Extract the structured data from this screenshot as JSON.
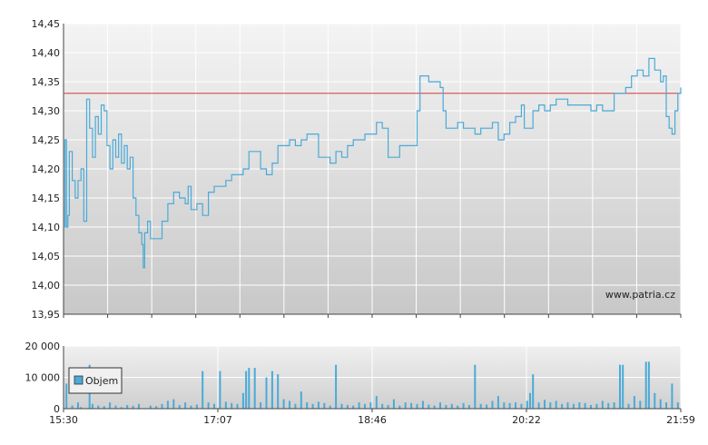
{
  "chart_data": [
    {
      "type": "line",
      "title": "",
      "xlabel": "",
      "ylabel": "",
      "y_ticks": [
        "13,95",
        "14,00",
        "14,05",
        "14,10",
        "14,15",
        "14,20",
        "14,25",
        "14,30",
        "14,35",
        "14,40",
        "14,45"
      ],
      "ylim": [
        13.95,
        14.45
      ],
      "reference_line": {
        "value": 14.33,
        "color": "#d23c3c"
      },
      "watermark": "www.patria.cz",
      "line_color": "#4aaad8",
      "grid": true,
      "series": [
        {
          "values": [
            [
              0,
              14.1
            ],
            [
              0.5,
              14.25
            ],
            [
              1,
              14.1
            ],
            [
              1.5,
              14.12
            ],
            [
              2,
              14.23
            ],
            [
              3,
              14.18
            ],
            [
              4,
              14.15
            ],
            [
              5,
              14.18
            ],
            [
              6,
              14.2
            ],
            [
              7,
              14.11
            ],
            [
              8,
              14.32
            ],
            [
              9,
              14.27
            ],
            [
              10,
              14.22
            ],
            [
              11,
              14.29
            ],
            [
              12,
              14.26
            ],
            [
              13,
              14.31
            ],
            [
              14,
              14.3
            ],
            [
              15,
              14.24
            ],
            [
              16,
              14.2
            ],
            [
              17,
              14.25
            ],
            [
              18,
              14.22
            ],
            [
              19,
              14.26
            ],
            [
              20,
              14.21
            ],
            [
              21,
              14.24
            ],
            [
              22,
              14.2
            ],
            [
              23,
              14.22
            ],
            [
              24,
              14.15
            ],
            [
              25,
              14.12
            ],
            [
              26,
              14.09
            ],
            [
              27,
              14.07
            ],
            [
              27.5,
              14.03
            ],
            [
              28,
              14.09
            ],
            [
              29,
              14.11
            ],
            [
              30,
              14.08
            ],
            [
              32,
              14.08
            ],
            [
              34,
              14.11
            ],
            [
              36,
              14.14
            ],
            [
              38,
              14.16
            ],
            [
              40,
              14.15
            ],
            [
              42,
              14.14
            ],
            [
              43,
              14.17
            ],
            [
              44,
              14.13
            ],
            [
              46,
              14.14
            ],
            [
              48,
              14.12
            ],
            [
              50,
              14.16
            ],
            [
              52,
              14.17
            ],
            [
              54,
              14.17
            ],
            [
              56,
              14.18
            ],
            [
              58,
              14.19
            ],
            [
              60,
              14.19
            ],
            [
              62,
              14.2
            ],
            [
              64,
              14.23
            ],
            [
              66,
              14.23
            ],
            [
              68,
              14.2
            ],
            [
              70,
              14.19
            ],
            [
              72,
              14.21
            ],
            [
              74,
              14.24
            ],
            [
              76,
              14.24
            ],
            [
              78,
              14.25
            ],
            [
              80,
              14.24
            ],
            [
              82,
              14.25
            ],
            [
              84,
              14.26
            ],
            [
              86,
              14.26
            ],
            [
              88,
              14.22
            ],
            [
              90,
              14.22
            ],
            [
              92,
              14.21
            ],
            [
              94,
              14.23
            ],
            [
              96,
              14.22
            ],
            [
              98,
              14.24
            ],
            [
              100,
              14.25
            ],
            [
              102,
              14.25
            ],
            [
              104,
              14.26
            ],
            [
              106,
              14.26
            ],
            [
              108,
              14.28
            ],
            [
              110,
              14.27
            ],
            [
              112,
              14.22
            ],
            [
              114,
              14.22
            ],
            [
              116,
              14.24
            ],
            [
              118,
              14.24
            ],
            [
              120,
              14.24
            ],
            [
              122,
              14.3
            ],
            [
              123,
              14.36
            ],
            [
              124,
              14.36
            ],
            [
              126,
              14.35
            ],
            [
              128,
              14.35
            ],
            [
              130,
              14.34
            ],
            [
              131,
              14.3
            ],
            [
              132,
              14.27
            ],
            [
              134,
              14.27
            ],
            [
              136,
              14.28
            ],
            [
              138,
              14.27
            ],
            [
              140,
              14.27
            ],
            [
              142,
              14.26
            ],
            [
              144,
              14.27
            ],
            [
              146,
              14.27
            ],
            [
              148,
              14.28
            ],
            [
              150,
              14.25
            ],
            [
              152,
              14.26
            ],
            [
              154,
              14.28
            ],
            [
              156,
              14.29
            ],
            [
              158,
              14.31
            ],
            [
              159,
              14.27
            ],
            [
              160,
              14.27
            ],
            [
              162,
              14.3
            ],
            [
              164,
              14.31
            ],
            [
              166,
              14.3
            ],
            [
              168,
              14.31
            ],
            [
              170,
              14.32
            ],
            [
              172,
              14.32
            ],
            [
              174,
              14.31
            ],
            [
              176,
              14.31
            ],
            [
              178,
              14.31
            ],
            [
              180,
              14.31
            ],
            [
              182,
              14.3
            ],
            [
              184,
              14.31
            ],
            [
              186,
              14.3
            ],
            [
              188,
              14.3
            ],
            [
              190,
              14.33
            ],
            [
              192,
              14.33
            ],
            [
              194,
              14.34
            ],
            [
              196,
              14.36
            ],
            [
              198,
              14.37
            ],
            [
              200,
              14.36
            ],
            [
              202,
              14.39
            ],
            [
              204,
              14.37
            ],
            [
              206,
              14.35
            ],
            [
              207,
              14.36
            ],
            [
              208,
              14.29
            ],
            [
              209,
              14.27
            ],
            [
              210,
              14.26
            ],
            [
              211,
              14.3
            ],
            [
              212,
              14.33
            ],
            [
              213,
              14.34
            ]
          ]
        }
      ]
    },
    {
      "type": "bar",
      "title": "",
      "legend": [
        "Objem"
      ],
      "legend_placement": "top-left",
      "y_ticks": [
        "0",
        "10 000",
        "20 000"
      ],
      "ylim": [
        0,
        20000
      ],
      "x_ticks": [
        "15:30",
        "17:07",
        "18:46",
        "20:22",
        "21:59"
      ],
      "bar_color": "#4aaad8",
      "values": [
        [
          1,
          8000
        ],
        [
          3,
          1000
        ],
        [
          5,
          2000
        ],
        [
          6,
          500
        ],
        [
          9,
          14000
        ],
        [
          10,
          1500
        ],
        [
          12,
          1000
        ],
        [
          14,
          800
        ],
        [
          16,
          2000
        ],
        [
          18,
          1000
        ],
        [
          20,
          500
        ],
        [
          22,
          1200
        ],
        [
          24,
          900
        ],
        [
          26,
          1500
        ],
        [
          30,
          1000
        ],
        [
          32,
          800
        ],
        [
          34,
          1500
        ],
        [
          36,
          2500
        ],
        [
          38,
          3000
        ],
        [
          40,
          1200
        ],
        [
          42,
          2000
        ],
        [
          44,
          1000
        ],
        [
          46,
          1300
        ],
        [
          48,
          12000
        ],
        [
          50,
          2000
        ],
        [
          52,
          1500
        ],
        [
          54,
          12000
        ],
        [
          56,
          2200
        ],
        [
          58,
          1800
        ],
        [
          60,
          1500
        ],
        [
          62,
          5000
        ],
        [
          63,
          12000
        ],
        [
          64,
          13000
        ],
        [
          66,
          13000
        ],
        [
          68,
          2000
        ],
        [
          70,
          10000
        ],
        [
          72,
          12000
        ],
        [
          74,
          11000
        ],
        [
          76,
          3000
        ],
        [
          78,
          2500
        ],
        [
          80,
          1500
        ],
        [
          82,
          5500
        ],
        [
          84,
          2000
        ],
        [
          86,
          1500
        ],
        [
          88,
          2200
        ],
        [
          90,
          1800
        ],
        [
          92,
          1000
        ],
        [
          94,
          14000
        ],
        [
          96,
          1500
        ],
        [
          98,
          1200
        ],
        [
          100,
          1000
        ],
        [
          102,
          2000
        ],
        [
          104,
          1500
        ],
        [
          106,
          2000
        ],
        [
          108,
          4000
        ],
        [
          110,
          1500
        ],
        [
          112,
          1200
        ],
        [
          114,
          3000
        ],
        [
          116,
          1000
        ],
        [
          118,
          2000
        ],
        [
          120,
          1800
        ],
        [
          122,
          1500
        ],
        [
          124,
          2500
        ],
        [
          126,
          1300
        ],
        [
          128,
          1000
        ],
        [
          130,
          2000
        ],
        [
          132,
          1200
        ],
        [
          134,
          1500
        ],
        [
          136,
          1000
        ],
        [
          138,
          1800
        ],
        [
          140,
          1200
        ],
        [
          142,
          14000
        ],
        [
          144,
          1500
        ],
        [
          146,
          1300
        ],
        [
          148,
          2500
        ],
        [
          150,
          4000
        ],
        [
          152,
          2000
        ],
        [
          154,
          1800
        ],
        [
          156,
          2000
        ],
        [
          158,
          1500
        ],
        [
          160,
          2500
        ],
        [
          161,
          5000
        ],
        [
          162,
          11000
        ],
        [
          164,
          2000
        ],
        [
          166,
          2800
        ],
        [
          168,
          2000
        ],
        [
          170,
          2500
        ],
        [
          172,
          1500
        ],
        [
          174,
          2000
        ],
        [
          176,
          1500
        ],
        [
          178,
          2000
        ],
        [
          180,
          1800
        ],
        [
          182,
          1200
        ],
        [
          184,
          1500
        ],
        [
          186,
          2500
        ],
        [
          188,
          1800
        ],
        [
          190,
          2000
        ],
        [
          192,
          14000
        ],
        [
          193,
          14000
        ],
        [
          195,
          1500
        ],
        [
          197,
          4000
        ],
        [
          199,
          2500
        ],
        [
          201,
          15000
        ],
        [
          202,
          15000
        ],
        [
          204,
          5000
        ],
        [
          206,
          3000
        ],
        [
          208,
          2000
        ],
        [
          210,
          8000
        ],
        [
          212,
          2000
        ]
      ]
    }
  ]
}
